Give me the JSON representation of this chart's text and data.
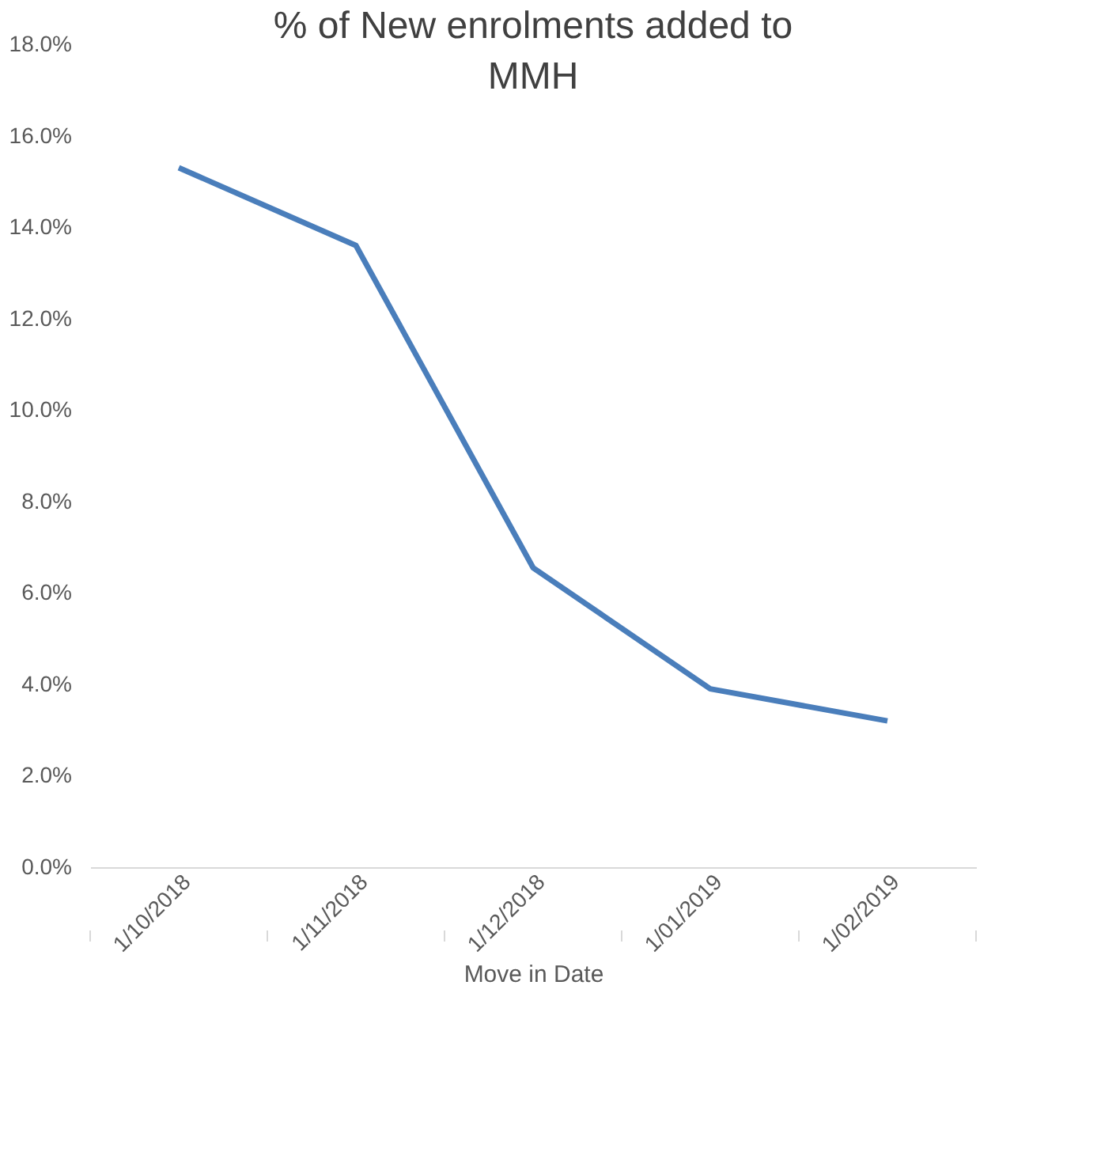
{
  "chart_data": {
    "type": "line",
    "title": "% of New enrolments added to MMH",
    "xlabel": "Move in Date",
    "categories": [
      "1/10/2018",
      "1/11/2018",
      "1/12/2018",
      "1/01/2019",
      "1/02/2019"
    ],
    "series": [
      {
        "color": "#4a7ebb",
        "values": [
          15.3,
          13.6,
          6.55,
          3.9,
          3.2
        ]
      }
    ],
    "ylim": [
      0,
      18
    ],
    "yticks": [
      {
        "value": 0,
        "label": "0.0%"
      },
      {
        "value": 2,
        "label": "2.0%"
      },
      {
        "value": 4,
        "label": "4.0%"
      },
      {
        "value": 6,
        "label": "6.0%"
      },
      {
        "value": 8,
        "label": "8.0%"
      },
      {
        "value": 10,
        "label": "10.0%"
      },
      {
        "value": 12,
        "label": "12.0%"
      },
      {
        "value": 14,
        "label": "14.0%"
      },
      {
        "value": 16,
        "label": "16.0%"
      },
      {
        "value": 18,
        "label": "18.0%"
      }
    ],
    "grid": false,
    "legend": false,
    "marker": "none",
    "line_style": "solid"
  }
}
